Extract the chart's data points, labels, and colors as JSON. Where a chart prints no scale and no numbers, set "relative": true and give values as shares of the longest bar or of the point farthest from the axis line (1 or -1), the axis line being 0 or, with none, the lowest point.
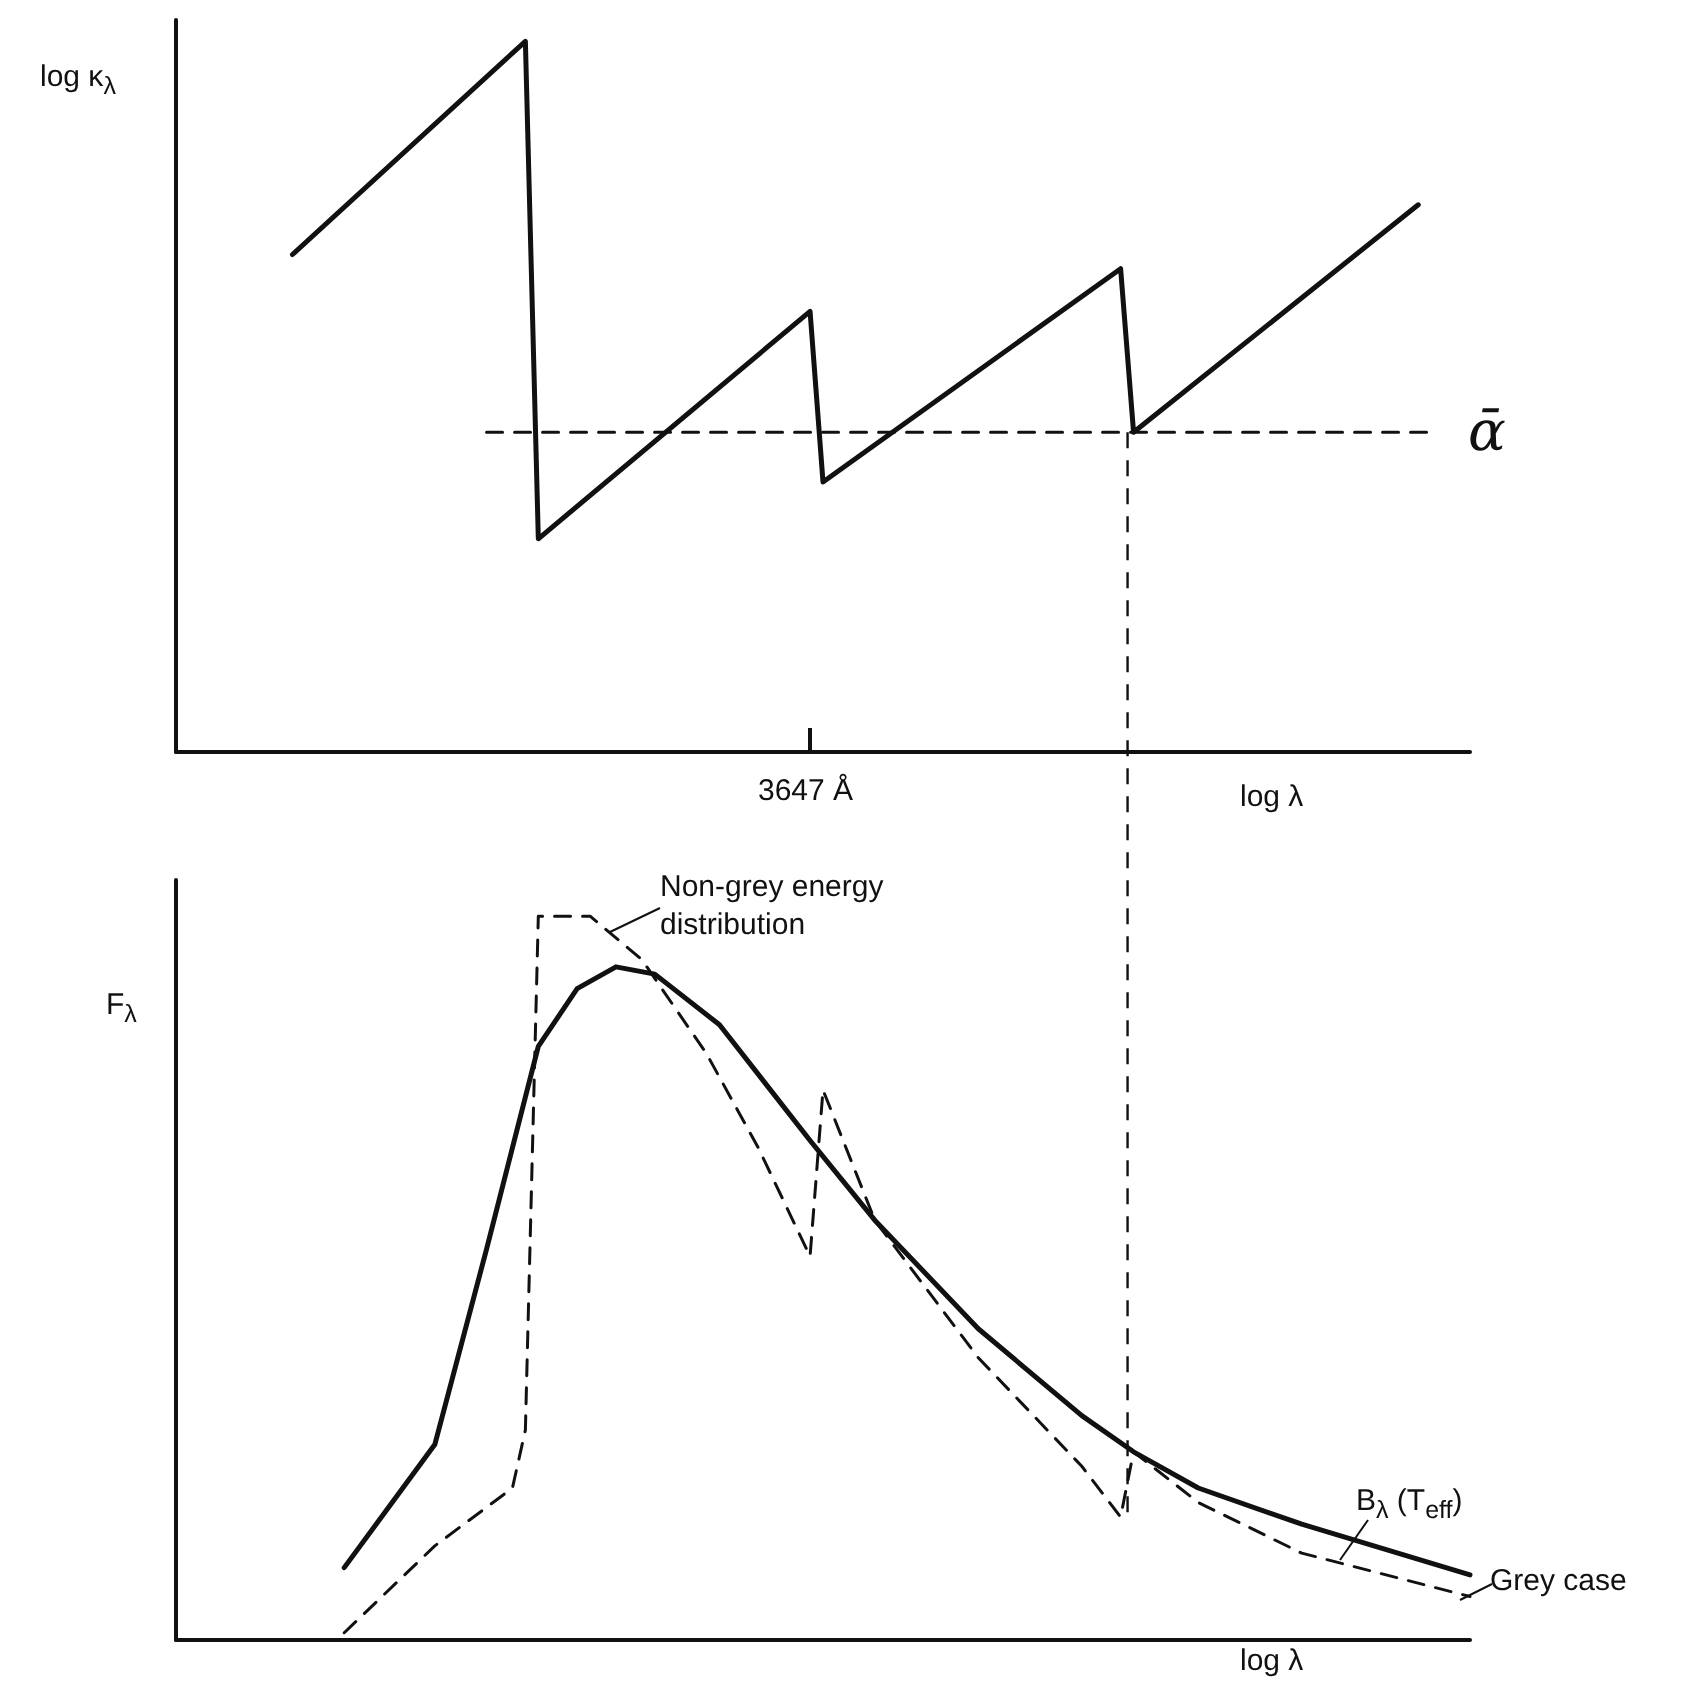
{
  "chart_data": [
    {
      "type": "line",
      "relative": true,
      "ylabel": "log κ$_{λ}$",
      "xlabel": "log λ",
      "marker": "none",
      "grid": false,
      "categories": [
        null,
        null,
        null,
        null,
        null,
        null,
        null,
        null,
        null,
        null,
        null,
        null,
        null,
        null,
        null,
        null,
        null,
        null,
        null,
        null,
        null,
        null,
        null,
        null,
        null,
        null,
        null,
        null,
        null,
        null,
        null,
        null,
        null,
        null,
        null,
        null,
        null,
        null,
        null,
        null,
        null,
        null,
        null,
        null,
        null,
        null,
        null,
        null,
        null,
        null,
        null,
        null,
        null,
        null,
        null,
        null,
        null,
        null,
        null,
        null,
        null,
        null,
        null,
        null,
        null,
        null,
        null,
        null,
        null,
        null,
        null,
        null,
        null,
        null,
        null,
        null,
        null,
        null,
        null,
        null,
        null,
        null,
        null,
        null,
        null,
        null,
        null,
        null,
        null,
        null,
        null,
        null,
        null,
        null,
        null,
        null,
        null,
        null,
        null,
        null,
        null
      ],
      "series": [
        {
          "color": "#111111",
          "line_style": "solid",
          "values": [
            null,
            null,
            null,
            null,
            null,
            null,
            null,
            null,
            null,
            0.7,
            null,
            null,
            null,
            null,
            null,
            null,
            null,
            null,
            null,
            null,
            null,
            null,
            null,
            null,
            null,
            null,
            null,
            1.0,
            0.3,
            null,
            null,
            null,
            null,
            null,
            null,
            null,
            null,
            null,
            null,
            null,
            null,
            null,
            null,
            null,
            null,
            null,
            null,
            null,
            null,
            0.62,
            0.38,
            null,
            null,
            null,
            null,
            null,
            null,
            null,
            null,
            null,
            null,
            null,
            null,
            null,
            null,
            null,
            null,
            null,
            null,
            null,
            null,
            null,
            null,
            0.68,
            0.45,
            null,
            null,
            null,
            null,
            null,
            null,
            null,
            null,
            null,
            null,
            null,
            null,
            null,
            null,
            null,
            null,
            null,
            null,
            null,
            null,
            null,
            0.77,
            null,
            null,
            null,
            null
          ]
        },
        {
          "color": "#111111",
          "line_style": "dashed",
          "values": [
            null,
            null,
            null,
            null,
            null,
            null,
            null,
            null,
            null,
            null,
            null,
            null,
            null,
            null,
            null,
            null,
            null,
            null,
            null,
            null,
            null,
            null,
            null,
            null,
            0.45,
            null,
            null,
            null,
            null,
            null,
            null,
            null,
            null,
            null,
            null,
            null,
            null,
            null,
            null,
            null,
            null,
            null,
            null,
            null,
            null,
            null,
            null,
            null,
            null,
            null,
            null,
            null,
            null,
            null,
            null,
            null,
            null,
            null,
            null,
            null,
            null,
            null,
            null,
            null,
            null,
            null,
            null,
            null,
            null,
            null,
            null,
            null,
            null,
            null,
            null,
            null,
            null,
            null,
            null,
            null,
            null,
            null,
            null,
            null,
            null,
            null,
            null,
            null,
            null,
            null,
            null,
            null,
            null,
            null,
            null,
            null,
            null,
            0.45,
            null,
            null,
            null
          ]
        }
      ],
      "annotations": [
        "ᾱ",
        "3647 Å"
      ]
    },
    {
      "type": "line",
      "relative": true,
      "ylabel": "F$_{λ}$",
      "xlabel": "log λ",
      "marker": "none",
      "grid": false,
      "categories": [
        null,
        null,
        null,
        null,
        null,
        null,
        null,
        null,
        null,
        null,
        null,
        null,
        null,
        null,
        null,
        null,
        null,
        null,
        null,
        null,
        null,
        null,
        null,
        null,
        null,
        null,
        null,
        null,
        null,
        null,
        null,
        null,
        null,
        null,
        null,
        null,
        null,
        null,
        null,
        null,
        null,
        null,
        null,
        null,
        null,
        null,
        null,
        null,
        null,
        null,
        null,
        null,
        null,
        null,
        null,
        null,
        null,
        null,
        null,
        null,
        null,
        null,
        null,
        null,
        null,
        null,
        null,
        null,
        null,
        null,
        null,
        null,
        null,
        null,
        null,
        null,
        null,
        null,
        null,
        null,
        null,
        null,
        null,
        null,
        null,
        null,
        null,
        null,
        null,
        null,
        null,
        null,
        null,
        null,
        null,
        null,
        null,
        null,
        null,
        null,
        null
      ],
      "series": [
        {
          "color": "#111111",
          "line_style": "solid",
          "values": [
            null,
            null,
            null,
            null,
            null,
            null,
            null,
            null,
            null,
            null,
            null,
            null,
            null,
            0.1,
            null,
            null,
            null,
            null,
            null,
            null,
            0.27,
            null,
            null,
            null,
            0.54,
            null,
            null,
            null,
            0.82,
            null,
            null,
            0.9,
            null,
            null,
            0.93,
            null,
            null,
            0.92,
            null,
            null,
            null,
            null,
            0.85,
            null,
            null,
            null,
            null,
            null,
            null,
            0.69,
            null,
            null,
            null,
            null,
            0.58,
            null,
            null,
            null,
            null,
            null,
            null,
            null,
            0.43,
            null,
            null,
            null,
            null,
            null,
            null,
            null,
            0.31,
            null,
            null,
            null,
            0.26,
            null,
            null,
            null,
            null,
            0.21,
            null,
            null,
            null,
            null,
            null,
            null,
            null,
            0.16,
            null,
            null,
            null,
            null,
            null,
            null,
            null,
            null,
            null,
            null,
            null,
            null,
            0.09
          ]
        },
        {
          "color": "#111111",
          "line_style": "dashed",
          "values": [
            null,
            null,
            null,
            null,
            null,
            null,
            null,
            null,
            null,
            null,
            null,
            null,
            null,
            0.01,
            null,
            null,
            null,
            null,
            null,
            null,
            0.13,
            null,
            null,
            null,
            null,
            null,
            0.21,
            0.29,
            1.0,
            null,
            null,
            null,
            1.0,
            null,
            null,
            null,
            0.94,
            null,
            null,
            null,
            null,
            0.81,
            null,
            null,
            null,
            0.68,
            null,
            null,
            null,
            0.53,
            0.76,
            null,
            null,
            null,
            0.58,
            null,
            null,
            null,
            null,
            null,
            null,
            null,
            0.39,
            null,
            null,
            null,
            null,
            null,
            null,
            null,
            0.24,
            null,
            null,
            0.17,
            0.26,
            null,
            null,
            null,
            null,
            0.19,
            null,
            null,
            null,
            null,
            null,
            null,
            null,
            0.12,
            null,
            null,
            null,
            null,
            null,
            null,
            null,
            null,
            null,
            null,
            null,
            null,
            0.06
          ]
        }
      ],
      "annotations": [
        "Non-grey energy distribution",
        "B$_{λ}$ (T$_{eff}$)",
        "Grey case"
      ]
    }
  ]
}
